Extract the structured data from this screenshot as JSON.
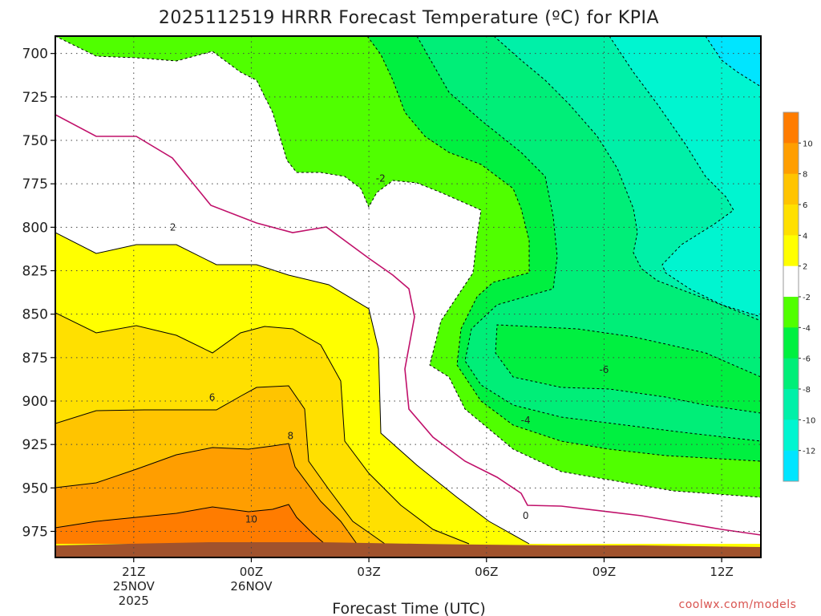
{
  "chart_data": {
    "type": "heatmap",
    "title": "2025112519 HRRR Forecast Temperature (ºC) for KPIA",
    "xlabel": "Forecast Time (UTC)",
    "credit": "coolwx.com/models",
    "y_ticks": [
      "700",
      "725",
      "750",
      "775",
      "800",
      "825",
      "850",
      "875",
      "900",
      "925",
      "950",
      "975"
    ],
    "ylim": [
      690,
      990
    ],
    "x_ticks": [
      {
        "hour": 21,
        "label": "21Z",
        "date_line1": "25NOV",
        "date_line2": "2025"
      },
      {
        "hour": 24,
        "label": "00Z",
        "date_line1": "26NOV",
        "date_line2": ""
      },
      {
        "hour": 27,
        "label": "03Z",
        "date_line1": "",
        "date_line2": ""
      },
      {
        "hour": 30,
        "label": "06Z",
        "date_line1": "",
        "date_line2": ""
      },
      {
        "hour": 33,
        "label": "09Z",
        "date_line1": "",
        "date_line2": ""
      },
      {
        "hour": 36,
        "label": "12Z",
        "date_line1": "",
        "date_line2": ""
      }
    ],
    "xlim": [
      19,
      37
    ],
    "grid": true,
    "colorbar": {
      "levels": [
        -14,
        -12,
        -10,
        -8,
        -6,
        -4,
        -2,
        2,
        4,
        6,
        8,
        10,
        12
      ],
      "labels": [
        "-12",
        "-10",
        "-8",
        "-6",
        "-4",
        "-2",
        "2",
        "4",
        "6",
        "8",
        "10"
      ],
      "colors": [
        "#00e5ff",
        "#00f5d0",
        "#00f0a8",
        "#00ee78",
        "#00f040",
        "#50ff00",
        "#ffffff",
        "#ffff00",
        "#ffe000",
        "#ffc400",
        "#ff9e00",
        "#ff7c00"
      ]
    },
    "temperature_profile_samples": [
      {
        "time_hour": 19,
        "pressure_hpa": 700,
        "temp_c": 1
      },
      {
        "time_hour": 24,
        "pressure_hpa": 750,
        "temp_c": 0
      },
      {
        "time_hour": 24,
        "pressure_hpa": 900,
        "temp_c": 7
      },
      {
        "time_hour": 24,
        "pressure_hpa": 975,
        "temp_c": 11
      },
      {
        "time_hour": 30,
        "pressure_hpa": 875,
        "temp_c": -3
      },
      {
        "time_hour": 36,
        "pressure_hpa": 700,
        "temp_c": -12
      },
      {
        "time_hour": 36,
        "pressure_hpa": 975,
        "temp_c": 0
      }
    ],
    "contour_labels": [
      {
        "text": "-2",
        "time_hour": 27.3,
        "pressure_hpa": 772
      },
      {
        "text": "2",
        "time_hour": 22,
        "pressure_hpa": 800
      },
      {
        "text": "6",
        "time_hour": 23,
        "pressure_hpa": 898
      },
      {
        "text": "8",
        "time_hour": 25,
        "pressure_hpa": 920
      },
      {
        "text": "10",
        "time_hour": 24,
        "pressure_hpa": 968
      },
      {
        "text": "0",
        "time_hour": 31,
        "pressure_hpa": 966
      },
      {
        "text": "-4",
        "time_hour": 31,
        "pressure_hpa": 911
      },
      {
        "text": "-6",
        "time_hour": 33,
        "pressure_hpa": 882
      }
    ]
  }
}
